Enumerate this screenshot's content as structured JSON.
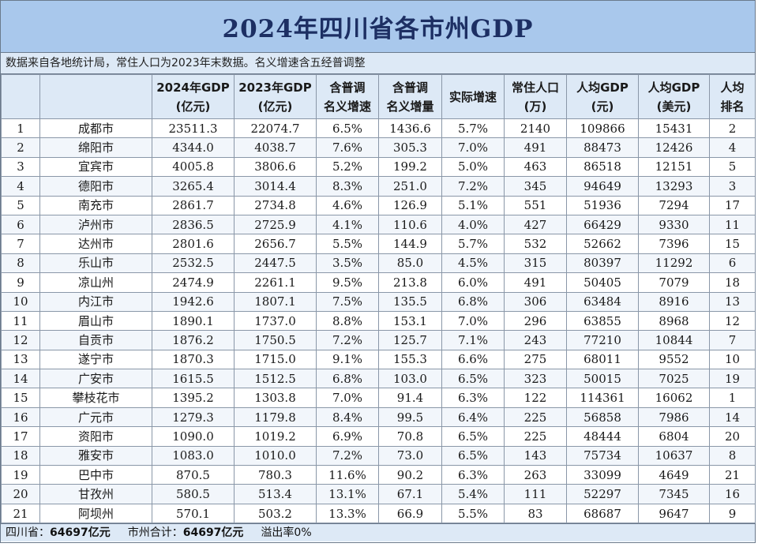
{
  "title": "2024年四川省各市州GDP",
  "note": "数据来自各地统计局，常住人口为2023年末数据。名义增速含五经普调整",
  "headers": [
    {
      "line1": "",
      "line2": ""
    },
    {
      "line1": "",
      "line2": ""
    },
    {
      "line1": "2024年GDP",
      "line2": "(亿元)"
    },
    {
      "line1": "2023年GDP",
      "line2": "(亿元)"
    },
    {
      "line1": "含普调",
      "line2": "名义增速"
    },
    {
      "line1": "含普调",
      "line2": "名义增量"
    },
    {
      "line1": "实际增速",
      "line2": ""
    },
    {
      "line1": "常住人口",
      "line2": "(万)"
    },
    {
      "line1": "人均GDP",
      "line2": "(元)"
    },
    {
      "line1": "人均GDP",
      "line2": "(美元)"
    },
    {
      "line1": "人均",
      "line2": "排名"
    }
  ],
  "rows": [
    [
      "1",
      "成都市",
      "23511.3",
      "22074.7",
      "6.5%",
      "1436.6",
      "5.7%",
      "2140",
      "109866",
      "15431",
      "2"
    ],
    [
      "2",
      "绵阳市",
      "4344.0",
      "4038.7",
      "7.6%",
      "305.3",
      "7.0%",
      "491",
      "88473",
      "12426",
      "4"
    ],
    [
      "3",
      "宜宾市",
      "4005.8",
      "3806.6",
      "5.2%",
      "199.2",
      "5.0%",
      "463",
      "86518",
      "12151",
      "5"
    ],
    [
      "4",
      "德阳市",
      "3265.4",
      "3014.4",
      "8.3%",
      "251.0",
      "7.2%",
      "345",
      "94649",
      "13293",
      "3"
    ],
    [
      "5",
      "南充市",
      "2861.7",
      "2734.8",
      "4.6%",
      "126.9",
      "5.1%",
      "551",
      "51936",
      "7294",
      "17"
    ],
    [
      "6",
      "泸州市",
      "2836.5",
      "2725.9",
      "4.1%",
      "110.6",
      "4.0%",
      "427",
      "66429",
      "9330",
      "11"
    ],
    [
      "7",
      "达州市",
      "2801.6",
      "2656.7",
      "5.5%",
      "144.9",
      "5.7%",
      "532",
      "52662",
      "7396",
      "15"
    ],
    [
      "8",
      "乐山市",
      "2532.5",
      "2447.5",
      "3.5%",
      "85.0",
      "4.5%",
      "315",
      "80397",
      "11292",
      "6"
    ],
    [
      "9",
      "凉山州",
      "2474.9",
      "2261.1",
      "9.5%",
      "213.8",
      "6.0%",
      "491",
      "50405",
      "7079",
      "18"
    ],
    [
      "10",
      "内江市",
      "1942.6",
      "1807.1",
      "7.5%",
      "135.5",
      "6.8%",
      "306",
      "63484",
      "8916",
      "13"
    ],
    [
      "11",
      "眉山市",
      "1890.1",
      "1737.0",
      "8.8%",
      "153.1",
      "7.0%",
      "296",
      "63855",
      "8968",
      "12"
    ],
    [
      "12",
      "自贡市",
      "1876.2",
      "1750.5",
      "7.2%",
      "125.7",
      "7.1%",
      "243",
      "77210",
      "10844",
      "7"
    ],
    [
      "13",
      "遂宁市",
      "1870.3",
      "1715.0",
      "9.1%",
      "155.3",
      "6.6%",
      "275",
      "68011",
      "9552",
      "10"
    ],
    [
      "14",
      "广安市",
      "1615.5",
      "1512.5",
      "6.8%",
      "103.0",
      "6.5%",
      "323",
      "50015",
      "7025",
      "19"
    ],
    [
      "15",
      "攀枝花市",
      "1395.2",
      "1303.8",
      "7.0%",
      "91.4",
      "6.3%",
      "122",
      "114361",
      "16062",
      "1"
    ],
    [
      "16",
      "广元市",
      "1279.3",
      "1179.8",
      "8.4%",
      "99.5",
      "6.4%",
      "225",
      "56858",
      "7986",
      "14"
    ],
    [
      "17",
      "资阳市",
      "1090.0",
      "1019.2",
      "6.9%",
      "70.8",
      "6.5%",
      "225",
      "48444",
      "6804",
      "20"
    ],
    [
      "18",
      "雅安市",
      "1083.0",
      "1010.0",
      "7.2%",
      "73.0",
      "6.5%",
      "143",
      "75734",
      "10637",
      "8"
    ],
    [
      "19",
      "巴中市",
      "870.5",
      "780.3",
      "11.6%",
      "90.2",
      "6.3%",
      "263",
      "33099",
      "4649",
      "21"
    ],
    [
      "20",
      "甘孜州",
      "580.5",
      "513.4",
      "13.1%",
      "67.1",
      "5.4%",
      "111",
      "52297",
      "7345",
      "16"
    ],
    [
      "21",
      "阿坝州",
      "570.1",
      "503.2",
      "13.3%",
      "66.9",
      "5.5%",
      "83",
      "68687",
      "9647",
      "9"
    ]
  ],
  "footer": {
    "province_label": "四川省：",
    "province_value": "64697亿元",
    "sum_label": "市州合计：",
    "sum_value": "64697亿元",
    "overflow_label": "溢出率0%"
  }
}
